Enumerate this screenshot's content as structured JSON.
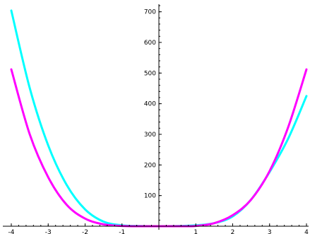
{
  "chart_data": {
    "type": "line",
    "title": "",
    "xlabel": "",
    "ylabel": "",
    "xlim": [
      -4,
      4
    ],
    "ylim": [
      0,
      720
    ],
    "grid": false,
    "x_ticks": [
      -4,
      -3,
      -2,
      -1,
      1,
      2,
      3,
      4
    ],
    "x_tick_labels": [
      "-4",
      "-3",
      "-2",
      "-1",
      "1",
      "2",
      "3",
      "4"
    ],
    "y_ticks": [
      100,
      200,
      300,
      400,
      500,
      600,
      700
    ],
    "y_tick_labels": [
      "100",
      "200",
      "300",
      "400",
      "500",
      "600",
      "700"
    ],
    "x_minor_step": 0.2,
    "y_minor_step": 20,
    "series": [
      {
        "color": "#00ffff",
        "x": [
          -4,
          -3.5,
          -3,
          -2.5,
          -2,
          -1.5,
          -1,
          -0.5,
          0,
          0.5,
          1,
          1.5,
          2,
          2.5,
          3,
          3.5,
          4
        ],
        "y": [
          704,
          451,
          264,
          135,
          55,
          15,
          3,
          0.5,
          0,
          0.5,
          3,
          10,
          32,
          87,
          177,
          285,
          425
        ]
      },
      {
        "color": "#ff00ff",
        "x": [
          -4,
          -3.5,
          -3,
          -2.5,
          -2,
          -1.5,
          -1,
          -0.5,
          0,
          0.5,
          1,
          1.5,
          2,
          2.5,
          3,
          3.5,
          4
        ],
        "y": [
          512,
          300,
          160,
          70,
          25,
          6,
          1,
          0,
          0,
          0,
          1,
          10,
          36,
          87,
          180,
          322,
          512
        ]
      }
    ]
  }
}
